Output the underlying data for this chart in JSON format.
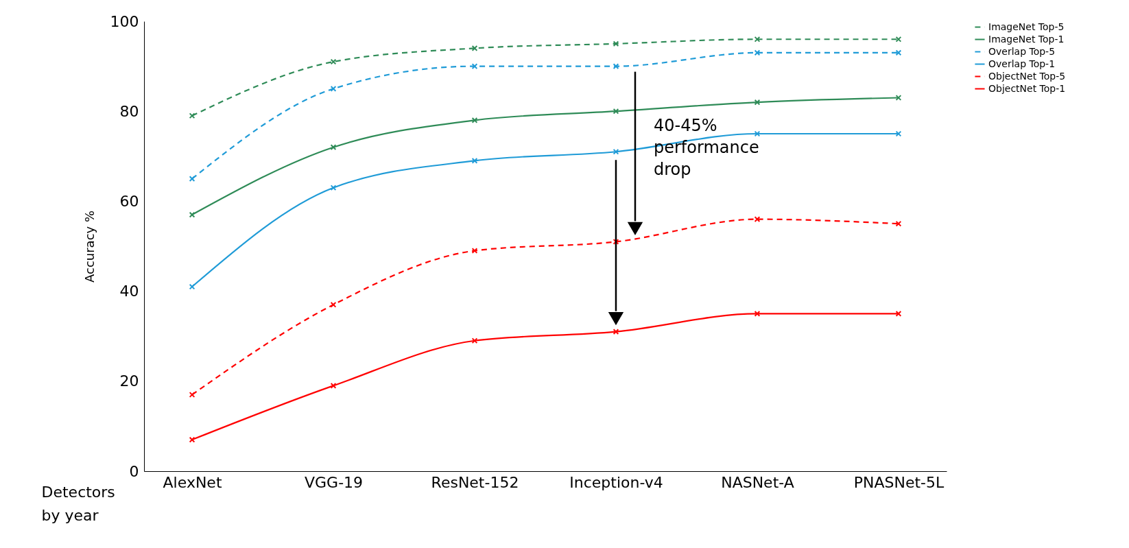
{
  "chart_data": {
    "type": "line",
    "xlabel": "Detectors\nby year",
    "ylabel": "Accuracy %",
    "categories": [
      "AlexNet",
      "VGG-19",
      "ResNet-152",
      "Inception-v4",
      "NASNet-A",
      "PNASNet-5L"
    ],
    "series": [
      {
        "name": "ImageNet Top-5",
        "color": "#2e8b57",
        "line_style": "dashed",
        "values": [
          79,
          91,
          94,
          95,
          96,
          96
        ]
      },
      {
        "name": "ImageNet Top-1",
        "color": "#2e8b57",
        "line_style": "solid",
        "values": [
          57,
          72,
          78,
          80,
          82,
          83
        ]
      },
      {
        "name": "Overlap Top-5",
        "color": "#1f9bd7",
        "line_style": "dashed",
        "values": [
          65,
          85,
          90,
          90,
          93,
          93
        ]
      },
      {
        "name": "Overlap Top-1",
        "color": "#1f9bd7",
        "line_style": "solid",
        "values": [
          41,
          63,
          69,
          71,
          75,
          75
        ]
      },
      {
        "name": "ObjectNet Top-5",
        "color": "#ff0000",
        "line_style": "dashed",
        "values": [
          17,
          37,
          49,
          51,
          56,
          55
        ]
      },
      {
        "name": "ObjectNet Top-1",
        "color": "#ff0000",
        "line_style": "solid",
        "values": [
          7,
          19,
          29,
          31,
          35,
          35
        ]
      }
    ],
    "ylim": [
      0,
      100
    ],
    "yticks": [
      0,
      20,
      40,
      60,
      80,
      100
    ],
    "grid": false,
    "legend": "top right",
    "marker": "cross",
    "annotations": [
      "40-45% performance drop"
    ]
  }
}
